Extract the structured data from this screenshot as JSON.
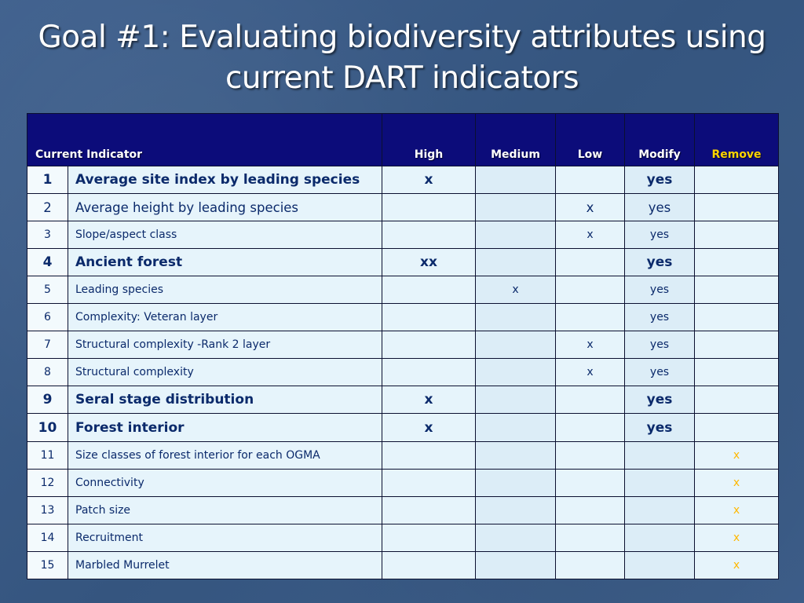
{
  "title": "Goal #1: Evaluating biodiversity attributes using current DART indicators",
  "table": {
    "headers": {
      "indicator": "Current Indicator",
      "high": "High",
      "medium": "Medium",
      "low": "Low",
      "modify": "Modify",
      "remove": "Remove"
    },
    "rows": [
      {
        "num": "1",
        "name": "Average site index by leading species",
        "high": "x",
        "medium": "",
        "low": "",
        "modify": "yes",
        "remove": ""
      },
      {
        "num": "2",
        "name": "Average height by leading species",
        "high": "",
        "medium": "",
        "low": "x",
        "modify": "yes",
        "remove": ""
      },
      {
        "num": "3",
        "name": "Slope/aspect class",
        "high": "",
        "medium": "",
        "low": "x",
        "modify": "yes",
        "remove": ""
      },
      {
        "num": "4",
        "name": "Ancient forest",
        "high": "xx",
        "medium": "",
        "low": "",
        "modify": "yes",
        "remove": ""
      },
      {
        "num": "5",
        "name": "Leading species",
        "high": "",
        "medium": "x",
        "low": "",
        "modify": "yes",
        "remove": ""
      },
      {
        "num": "6",
        "name": "Complexity: Veteran layer",
        "high": "",
        "medium": "",
        "low": "",
        "modify": "yes",
        "remove": ""
      },
      {
        "num": "7",
        "name": "Structural complexity -Rank 2 layer",
        "high": "",
        "medium": "",
        "low": "x",
        "modify": "yes",
        "remove": ""
      },
      {
        "num": "8",
        "name": "Structural complexity",
        "high": "",
        "medium": "",
        "low": "x",
        "modify": "yes",
        "remove": ""
      },
      {
        "num": "9",
        "name": "Seral stage distribution",
        "high": "x",
        "medium": "",
        "low": "",
        "modify": "yes",
        "remove": ""
      },
      {
        "num": "10",
        "name": "Forest interior",
        "high": "x",
        "medium": "",
        "low": "",
        "modify": "yes",
        "remove": ""
      },
      {
        "num": "11",
        "name": "Size classes of forest interior for each OGMA",
        "high": "",
        "medium": "",
        "low": "",
        "modify": "",
        "remove": "x"
      },
      {
        "num": "12",
        "name": "Connectivity",
        "high": "",
        "medium": "",
        "low": "",
        "modify": "",
        "remove": "x"
      },
      {
        "num": "13",
        "name": "Patch size",
        "high": "",
        "medium": "",
        "low": "",
        "modify": "",
        "remove": "x"
      },
      {
        "num": "14",
        "name": "Recruitment",
        "high": "",
        "medium": "",
        "low": "",
        "modify": "",
        "remove": "x"
      },
      {
        "num": "15",
        "name": "Marbled Murrelet",
        "high": "",
        "medium": "",
        "low": "",
        "modify": "",
        "remove": "x"
      }
    ]
  },
  "colors": {
    "background": "#3a5a86",
    "header_bg": "#0c0c7a",
    "remove_header": "#ffd400",
    "remove_mark": "#ffb800",
    "cell_bg": "#e6f4fb",
    "cell_text": "#0b2a6b"
  }
}
